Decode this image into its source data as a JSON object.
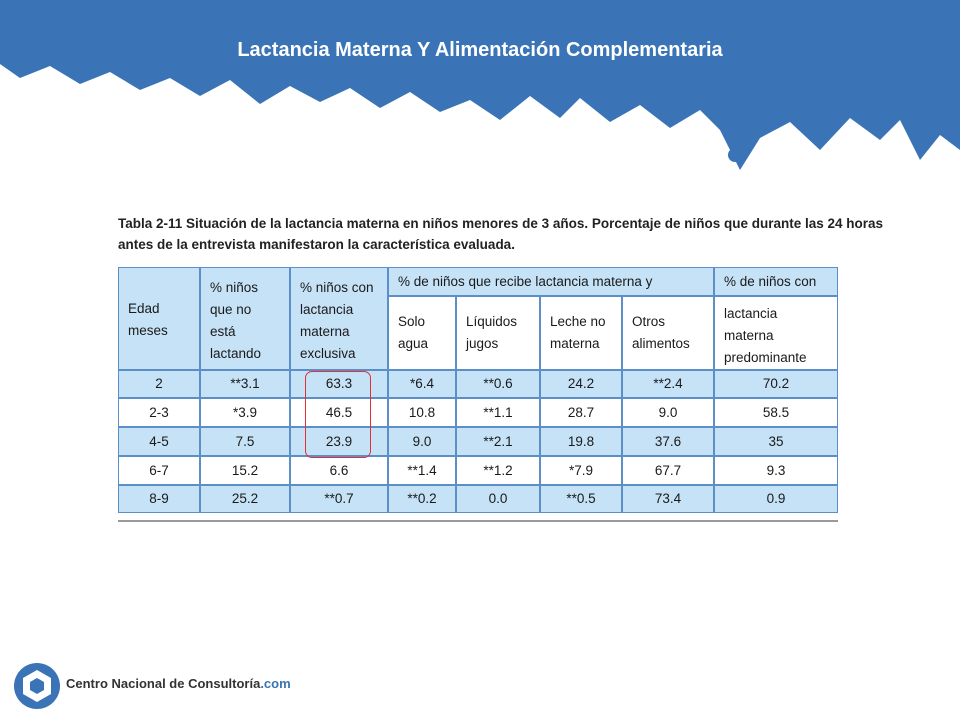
{
  "header": {
    "title": "Lactancia Materna Y Alimentación Complementaria"
  },
  "table": {
    "caption": [
      "Tabla 2-11 Situación de la lactancia materna en niños menores de 3 años. Porcentaje de niños que durante las 24 horas",
      "antes de la entrevista manifestaron la característica evaluada."
    ],
    "header_top": [
      [
        "Edad",
        "meses"
      ],
      [
        "% niños",
        "que no",
        "está",
        "lactando"
      ],
      [
        "% niños con",
        "lactancia",
        "materna",
        "exclusiva"
      ],
      [
        "% de niños que recibe lactancia materna y"
      ],
      [
        "% de niños con"
      ]
    ],
    "header_sub": [
      [
        "Solo",
        "agua"
      ],
      [
        "Líquidos",
        "jugos"
      ],
      [
        "Leche no",
        "materna"
      ],
      [
        "Otros",
        "alimentos"
      ],
      [
        "lactancia",
        "materna",
        "predominante"
      ]
    ],
    "rows": [
      [
        "2",
        "**3.1",
        "63.3",
        "*6.4",
        "**0.6",
        "24.2",
        "**2.4",
        "70.2"
      ],
      [
        "2-3",
        "*3.9",
        "46.5",
        "10.8",
        "**1.1",
        "28.7",
        "9.0",
        "58.5"
      ],
      [
        "4-5",
        "7.5",
        "23.9",
        "9.0",
        "**2.1",
        "19.8",
        "37.6",
        "35"
      ],
      [
        "6-7",
        "15.2",
        "6.6",
        "**1.4",
        "**1.2",
        "*7.9",
        "67.7",
        "9.3"
      ],
      [
        "8-9",
        "25.2",
        "**0.7",
        "**0.2",
        "0.0",
        "**0.5",
        "73.4",
        "0.9"
      ]
    ]
  },
  "footer": {
    "brand": "Centro Nacional de Consultoría",
    "domain": ".com"
  }
}
